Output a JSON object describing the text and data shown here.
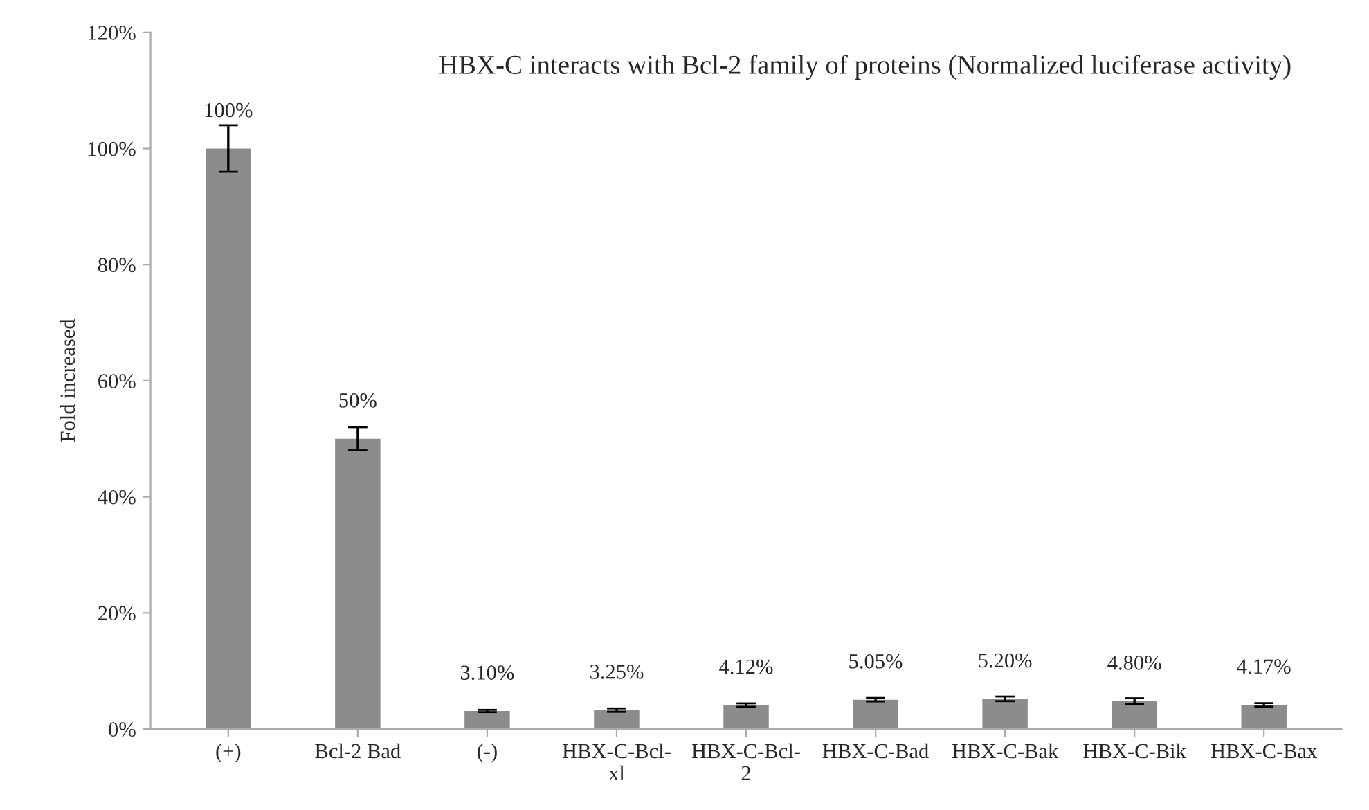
{
  "chart_data": {
    "type": "bar",
    "title": "HBX-C interacts with Bcl-2 family of proteins (Normalized luciferase activity)",
    "ylabel": "Fold increased",
    "categories": [
      "(+)",
      "Bcl-2 Bad",
      "(-)",
      "HBX-C-Bcl-\nxl",
      "HBX-C-Bcl-\n2",
      "HBX-C-Bad",
      "HBX-C-Bak",
      "HBX-C-Bik",
      "HBX-C-Bax"
    ],
    "values": [
      100,
      50,
      3.1,
      3.25,
      4.12,
      5.05,
      5.2,
      4.8,
      4.17
    ],
    "errors": [
      4,
      2,
      0.2,
      0.3,
      0.3,
      0.3,
      0.4,
      0.5,
      0.3
    ],
    "value_labels": [
      "100%",
      "50%",
      "3.10%",
      "3.25%",
      "4.12%",
      "5.05%",
      "5.20%",
      "4.80%",
      "4.17%"
    ],
    "color": "#8c8c8c",
    "ylim": [
      0,
      120
    ],
    "yticks": [
      {
        "value": 0,
        "label": "0%"
      },
      {
        "value": 20,
        "label": "20%"
      },
      {
        "value": 40,
        "label": "40%"
      },
      {
        "value": 60,
        "label": "60%"
      },
      {
        "value": 80,
        "label": "80%"
      },
      {
        "value": 100,
        "label": "100%"
      },
      {
        "value": 120,
        "label": "120%"
      }
    ],
    "grid": false,
    "legend": false
  }
}
